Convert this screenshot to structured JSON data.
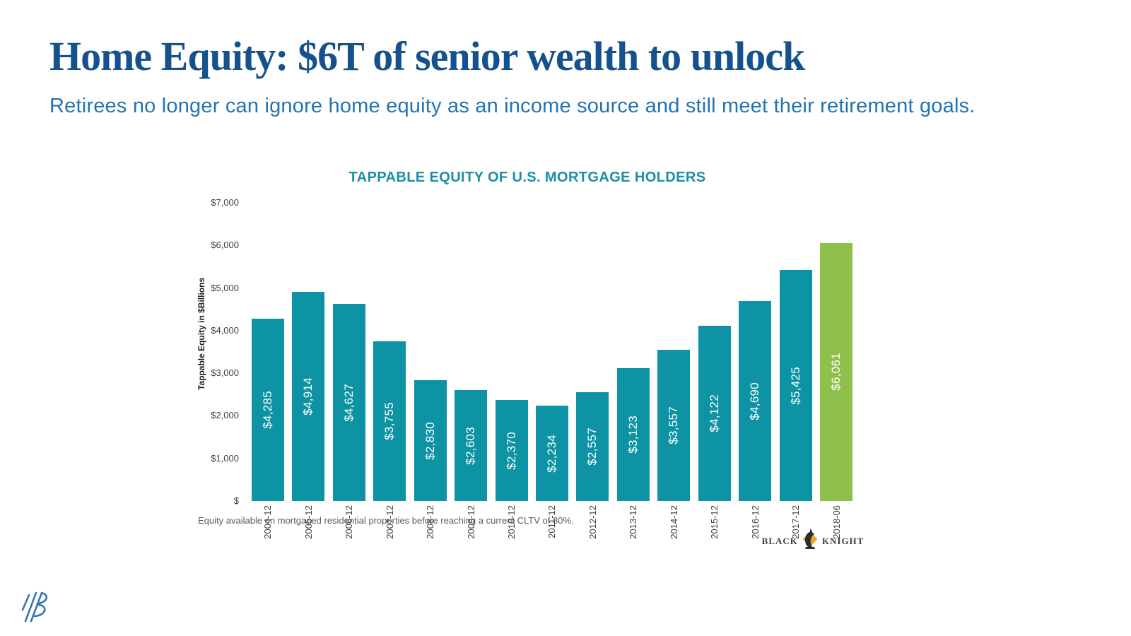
{
  "slide": {
    "title": "Home Equity: $6T of senior wealth to unlock",
    "subtitle": "Retirees no longer can ignore home equity as an income source and still meet their retirement goals."
  },
  "chart": {
    "title": "TAPPABLE EQUITY OF U.S. MORTGAGE HOLDERS",
    "y_axis_title": "Tappable Equity in $Billions",
    "footnote": "Equity available on mortgaged residential properties before reaching a current CLTV of 80%.",
    "y_tick_labels": [
      "$7,000",
      "$6,000",
      "$5,000",
      "$4,000",
      "$3,000",
      "$2,000",
      "$1,000",
      "$"
    ]
  },
  "chart_data": {
    "type": "bar",
    "title": "TAPPABLE EQUITY OF U.S. MORTGAGE HOLDERS",
    "xlabel": "",
    "ylabel": "Tappable Equity in $Billions",
    "categories": [
      "2004-12",
      "2005-12",
      "2006-12",
      "2007-12",
      "2008-12",
      "2009-12",
      "2010-12",
      "2011-12",
      "2012-12",
      "2013-12",
      "2014-12",
      "2015-12",
      "2016-12",
      "2017-12",
      "2018-06"
    ],
    "values": [
      4285,
      4914,
      4627,
      3755,
      2830,
      2603,
      2370,
      2234,
      2557,
      3123,
      3557,
      4122,
      4690,
      5425,
      6061
    ],
    "data_labels": [
      "$4,285",
      "$4,914",
      "$4,627",
      "$3,755",
      "$2,830",
      "$2,603",
      "$2,370",
      "$2,234",
      "$2,557",
      "$3,123",
      "$3,557",
      "$4,122",
      "$4,690",
      "$5,425",
      "$6,061"
    ],
    "ylim": [
      0,
      7000
    ],
    "grid": false,
    "legend": false,
    "bar_color": "#0d93a4",
    "highlight_color": "#8fc04c",
    "highlight_index": 14
  },
  "branding": {
    "black_knight_left": "BLACK",
    "black_knight_right": "KNIGHT"
  },
  "colors": {
    "title": "#15518c",
    "subtitle": "#2273b4",
    "chart_title": "#1b8ea6",
    "bar": "#0d93a4",
    "highlight_bar": "#8fc04c",
    "corner_logo": "#3a73b8"
  }
}
